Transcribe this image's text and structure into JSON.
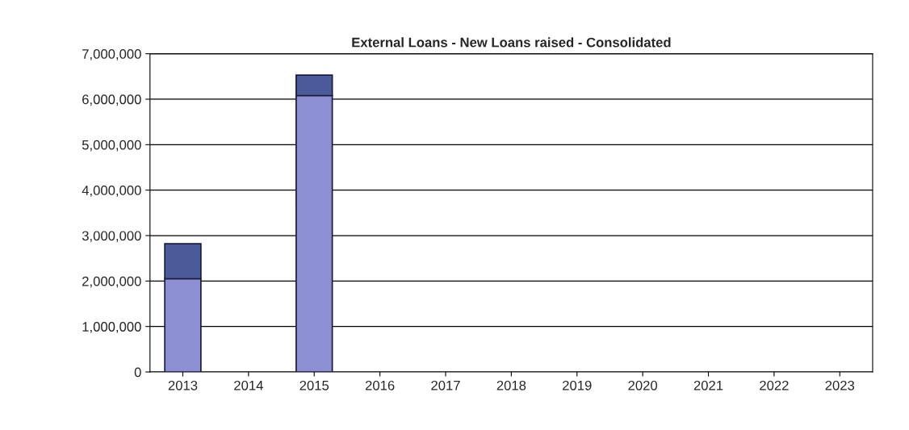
{
  "chart_data": {
    "type": "bar",
    "title": "External Loans - New Loans raised - Consolidated",
    "categories": [
      "2013",
      "2014",
      "2015",
      "2016",
      "2017",
      "2018",
      "2019",
      "2020",
      "2021",
      "2022",
      "2023"
    ],
    "stacked": true,
    "series": [
      {
        "color": "#8c90d2",
        "values": [
          2050000,
          null,
          6080000,
          null,
          null,
          null,
          null,
          null,
          null,
          null,
          null
        ]
      },
      {
        "color": "#4b5a98",
        "values": [
          770000,
          null,
          450000,
          null,
          null,
          null,
          null,
          null,
          null,
          null,
          null
        ]
      }
    ],
    "ylim": [
      0,
      7000000
    ],
    "yticks": [
      {
        "value": 0,
        "label": "0"
      },
      {
        "value": 1000000,
        "label": "1,000,000"
      },
      {
        "value": 2000000,
        "label": "2,000,000"
      },
      {
        "value": 3000000,
        "label": "3,000,000"
      },
      {
        "value": 4000000,
        "label": "4,000,000"
      },
      {
        "value": 5000000,
        "label": "5,000,000"
      },
      {
        "value": 6000000,
        "label": "6,000,000"
      },
      {
        "value": 7000000,
        "label": "7,000,000"
      }
    ],
    "grid": "y",
    "legend": false
  }
}
